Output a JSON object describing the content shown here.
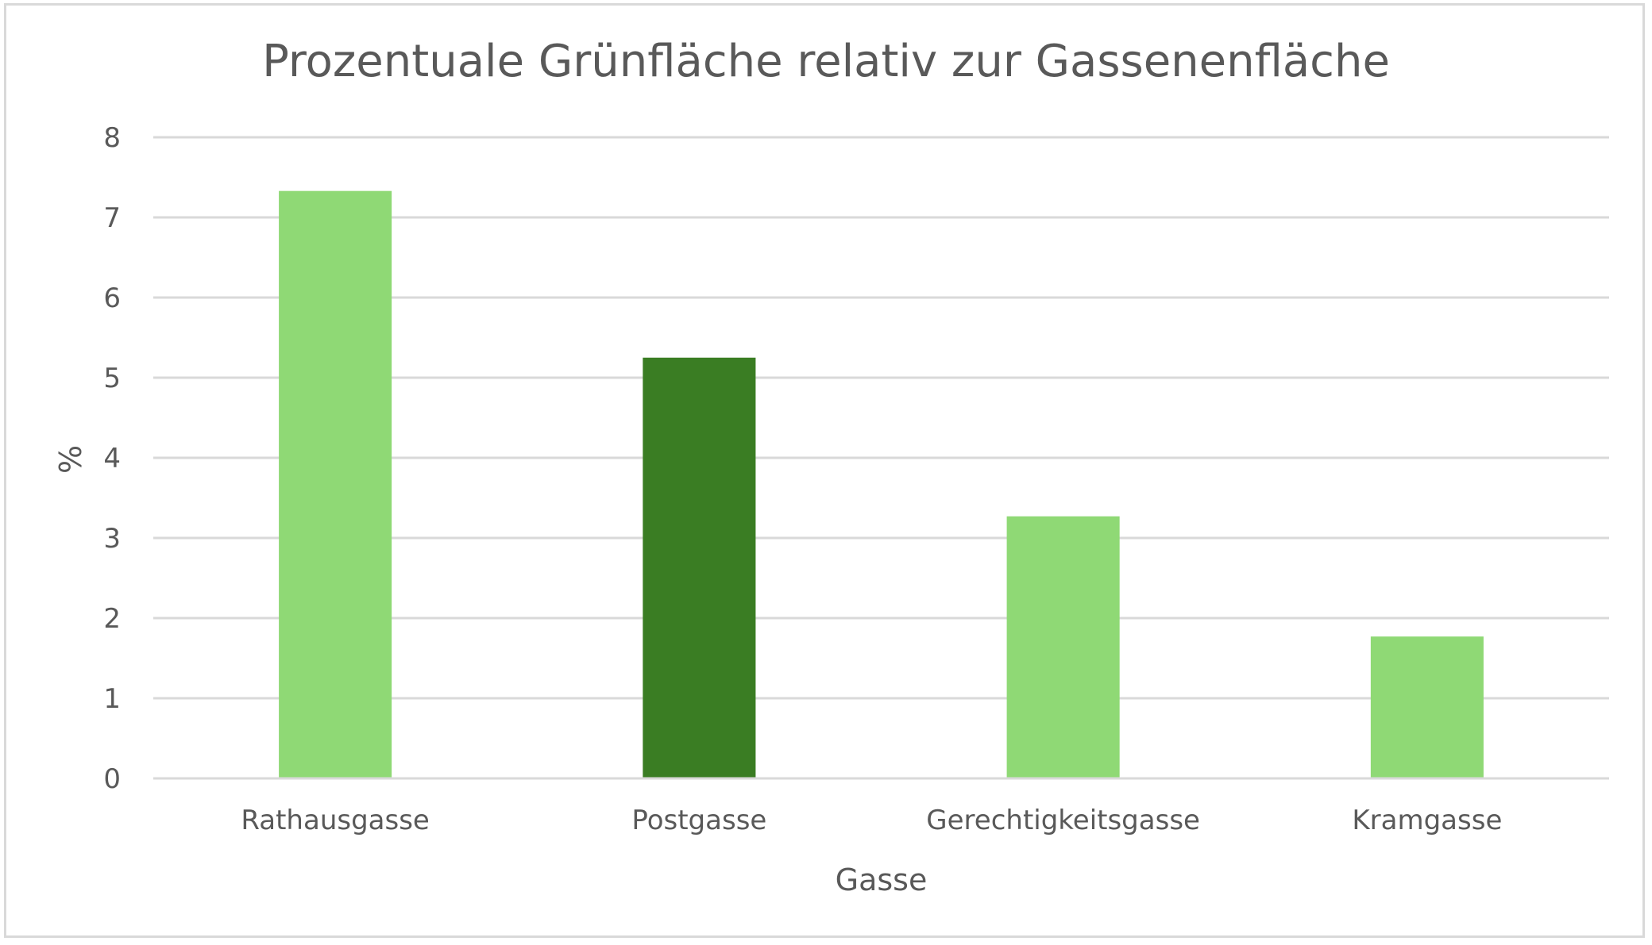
{
  "chart_data": {
    "type": "bar",
    "title": "Prozentuale Grünfläche relativ zur Gassenenfläche",
    "xlabel": "Gasse",
    "ylabel": "%",
    "categories": [
      "Rathausgasse",
      "Postgasse",
      "Gerechtigkeitsgasse",
      "Kramgasse"
    ],
    "values": [
      7.33,
      5.25,
      3.27,
      1.77
    ],
    "bar_colors": [
      "#8fd975",
      "#3a7d23",
      "#8fd975",
      "#8fd975"
    ],
    "ylim": [
      0,
      8
    ],
    "yticks": [
      "0",
      "1",
      "2",
      "3",
      "4",
      "5",
      "6",
      "7",
      "8"
    ],
    "grid": true,
    "legend": "none"
  }
}
